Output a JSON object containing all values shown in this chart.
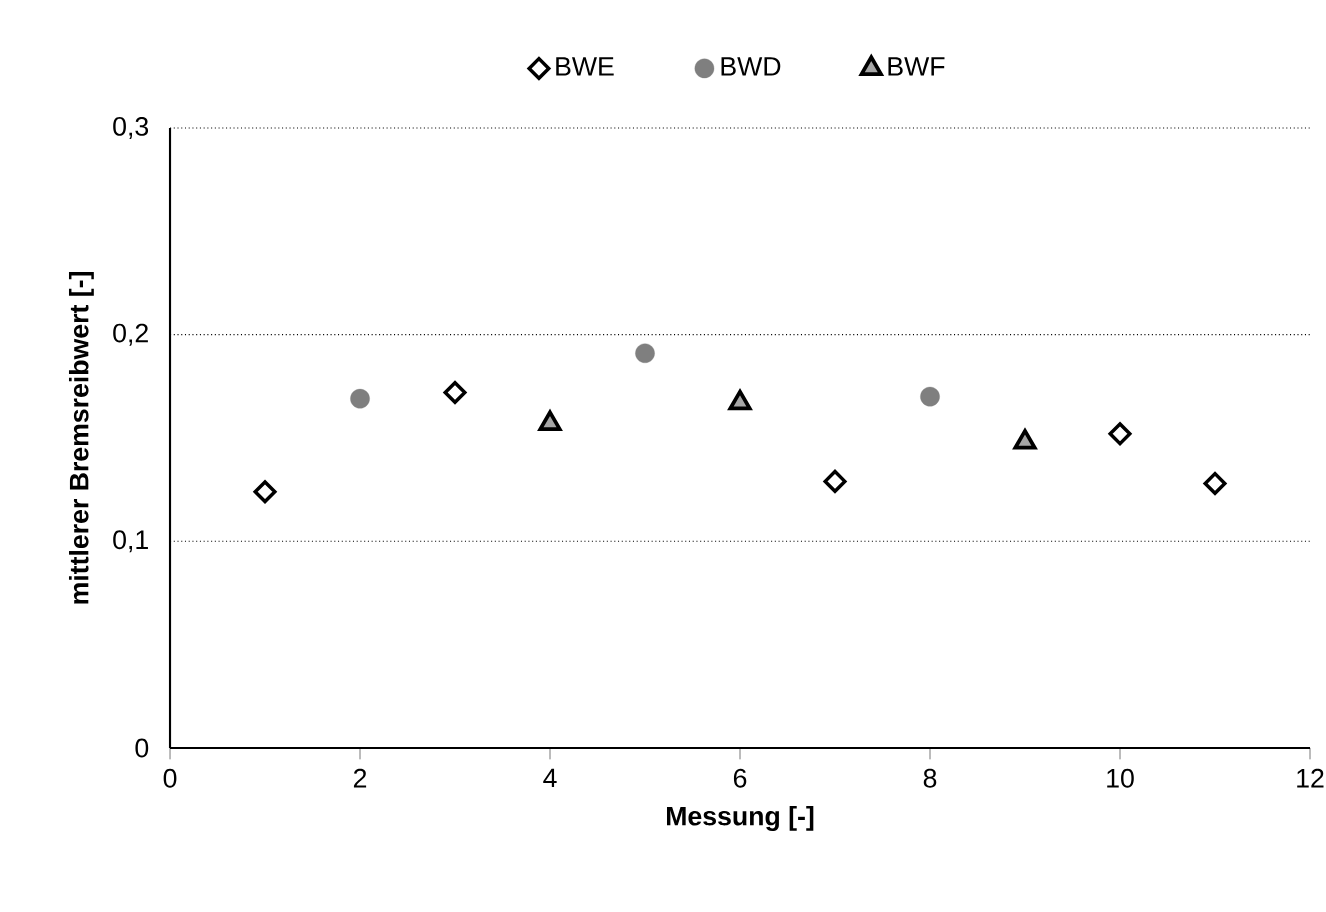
{
  "chart_data": {
    "type": "scatter",
    "xlabel": "Messung [-]",
    "ylabel": "mittlerer Bremsreibwert [-]",
    "xlim": [
      0,
      12
    ],
    "xticks": [
      0,
      2,
      4,
      6,
      8,
      10,
      12
    ],
    "ylim": [
      0,
      0.3
    ],
    "yticks": [
      0,
      {
        "value": 0.1,
        "label": "0,1"
      },
      {
        "value": 0.2,
        "label": "0,2"
      },
      {
        "value": 0.3,
        "label": "0,3"
      }
    ],
    "grid": "y",
    "legend": "top",
    "series": [
      {
        "name": "BWE",
        "marker": "diamond",
        "color": "#ffffff",
        "x": [
          1,
          3,
          7,
          10,
          11
        ],
        "values": [
          0.124,
          0.172,
          0.129,
          0.152,
          0.128
        ]
      },
      {
        "name": "BWD",
        "marker": "circle",
        "color": "#7f7f7f",
        "x": [
          2,
          5,
          8
        ],
        "values": [
          0.169,
          0.191,
          0.17
        ]
      },
      {
        "name": "BWF",
        "marker": "triangle",
        "color": "#a6a6a6",
        "x": [
          4,
          6,
          9
        ],
        "values": [
          0.157,
          0.167,
          0.148
        ]
      }
    ]
  }
}
